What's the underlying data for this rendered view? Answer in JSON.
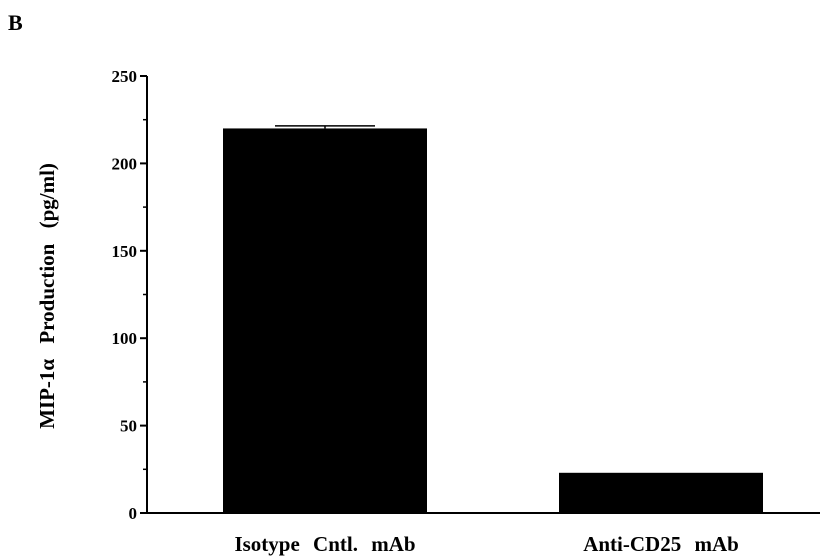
{
  "panel_label": "B",
  "chart_data": {
    "type": "bar",
    "categories": [
      "Isotype  Cntl.  mAb",
      "Anti-CD25  mAb"
    ],
    "values": [
      220,
      23
    ],
    "error": [
      1.5,
      0
    ],
    "ylabel": "MIP-1α  Production  (pg/ml)",
    "xlabel": "",
    "title": "",
    "ylim": [
      0,
      250
    ],
    "yticks": [
      0,
      50,
      100,
      150,
      200,
      250
    ],
    "grid": false,
    "bar_color": "#000000"
  }
}
